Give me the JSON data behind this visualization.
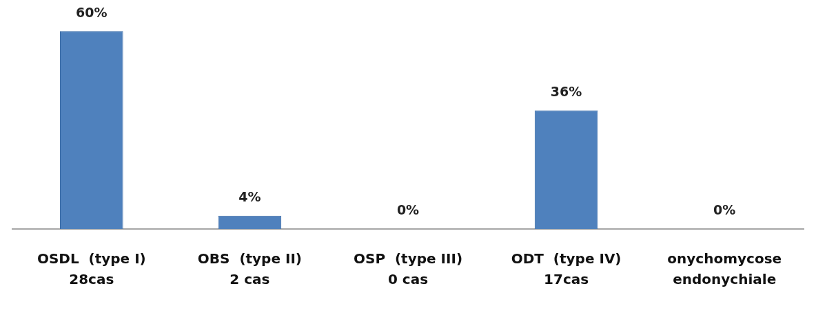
{
  "chart_data": {
    "type": "bar",
    "categories": [
      "OSDL  (type I)\n28cas",
      "OBS  (type II)\n2 cas",
      "OSP  (type III)\n0 cas",
      "ODT  (type IV)\n17cas",
      "onychomycose\nendonychiale"
    ],
    "values": [
      60,
      4,
      0,
      36,
      0
    ],
    "value_labels": [
      "60%",
      "4%",
      "0%",
      "36%",
      "0%"
    ],
    "color": "#4f81bd",
    "grid": false,
    "legend": false
  }
}
